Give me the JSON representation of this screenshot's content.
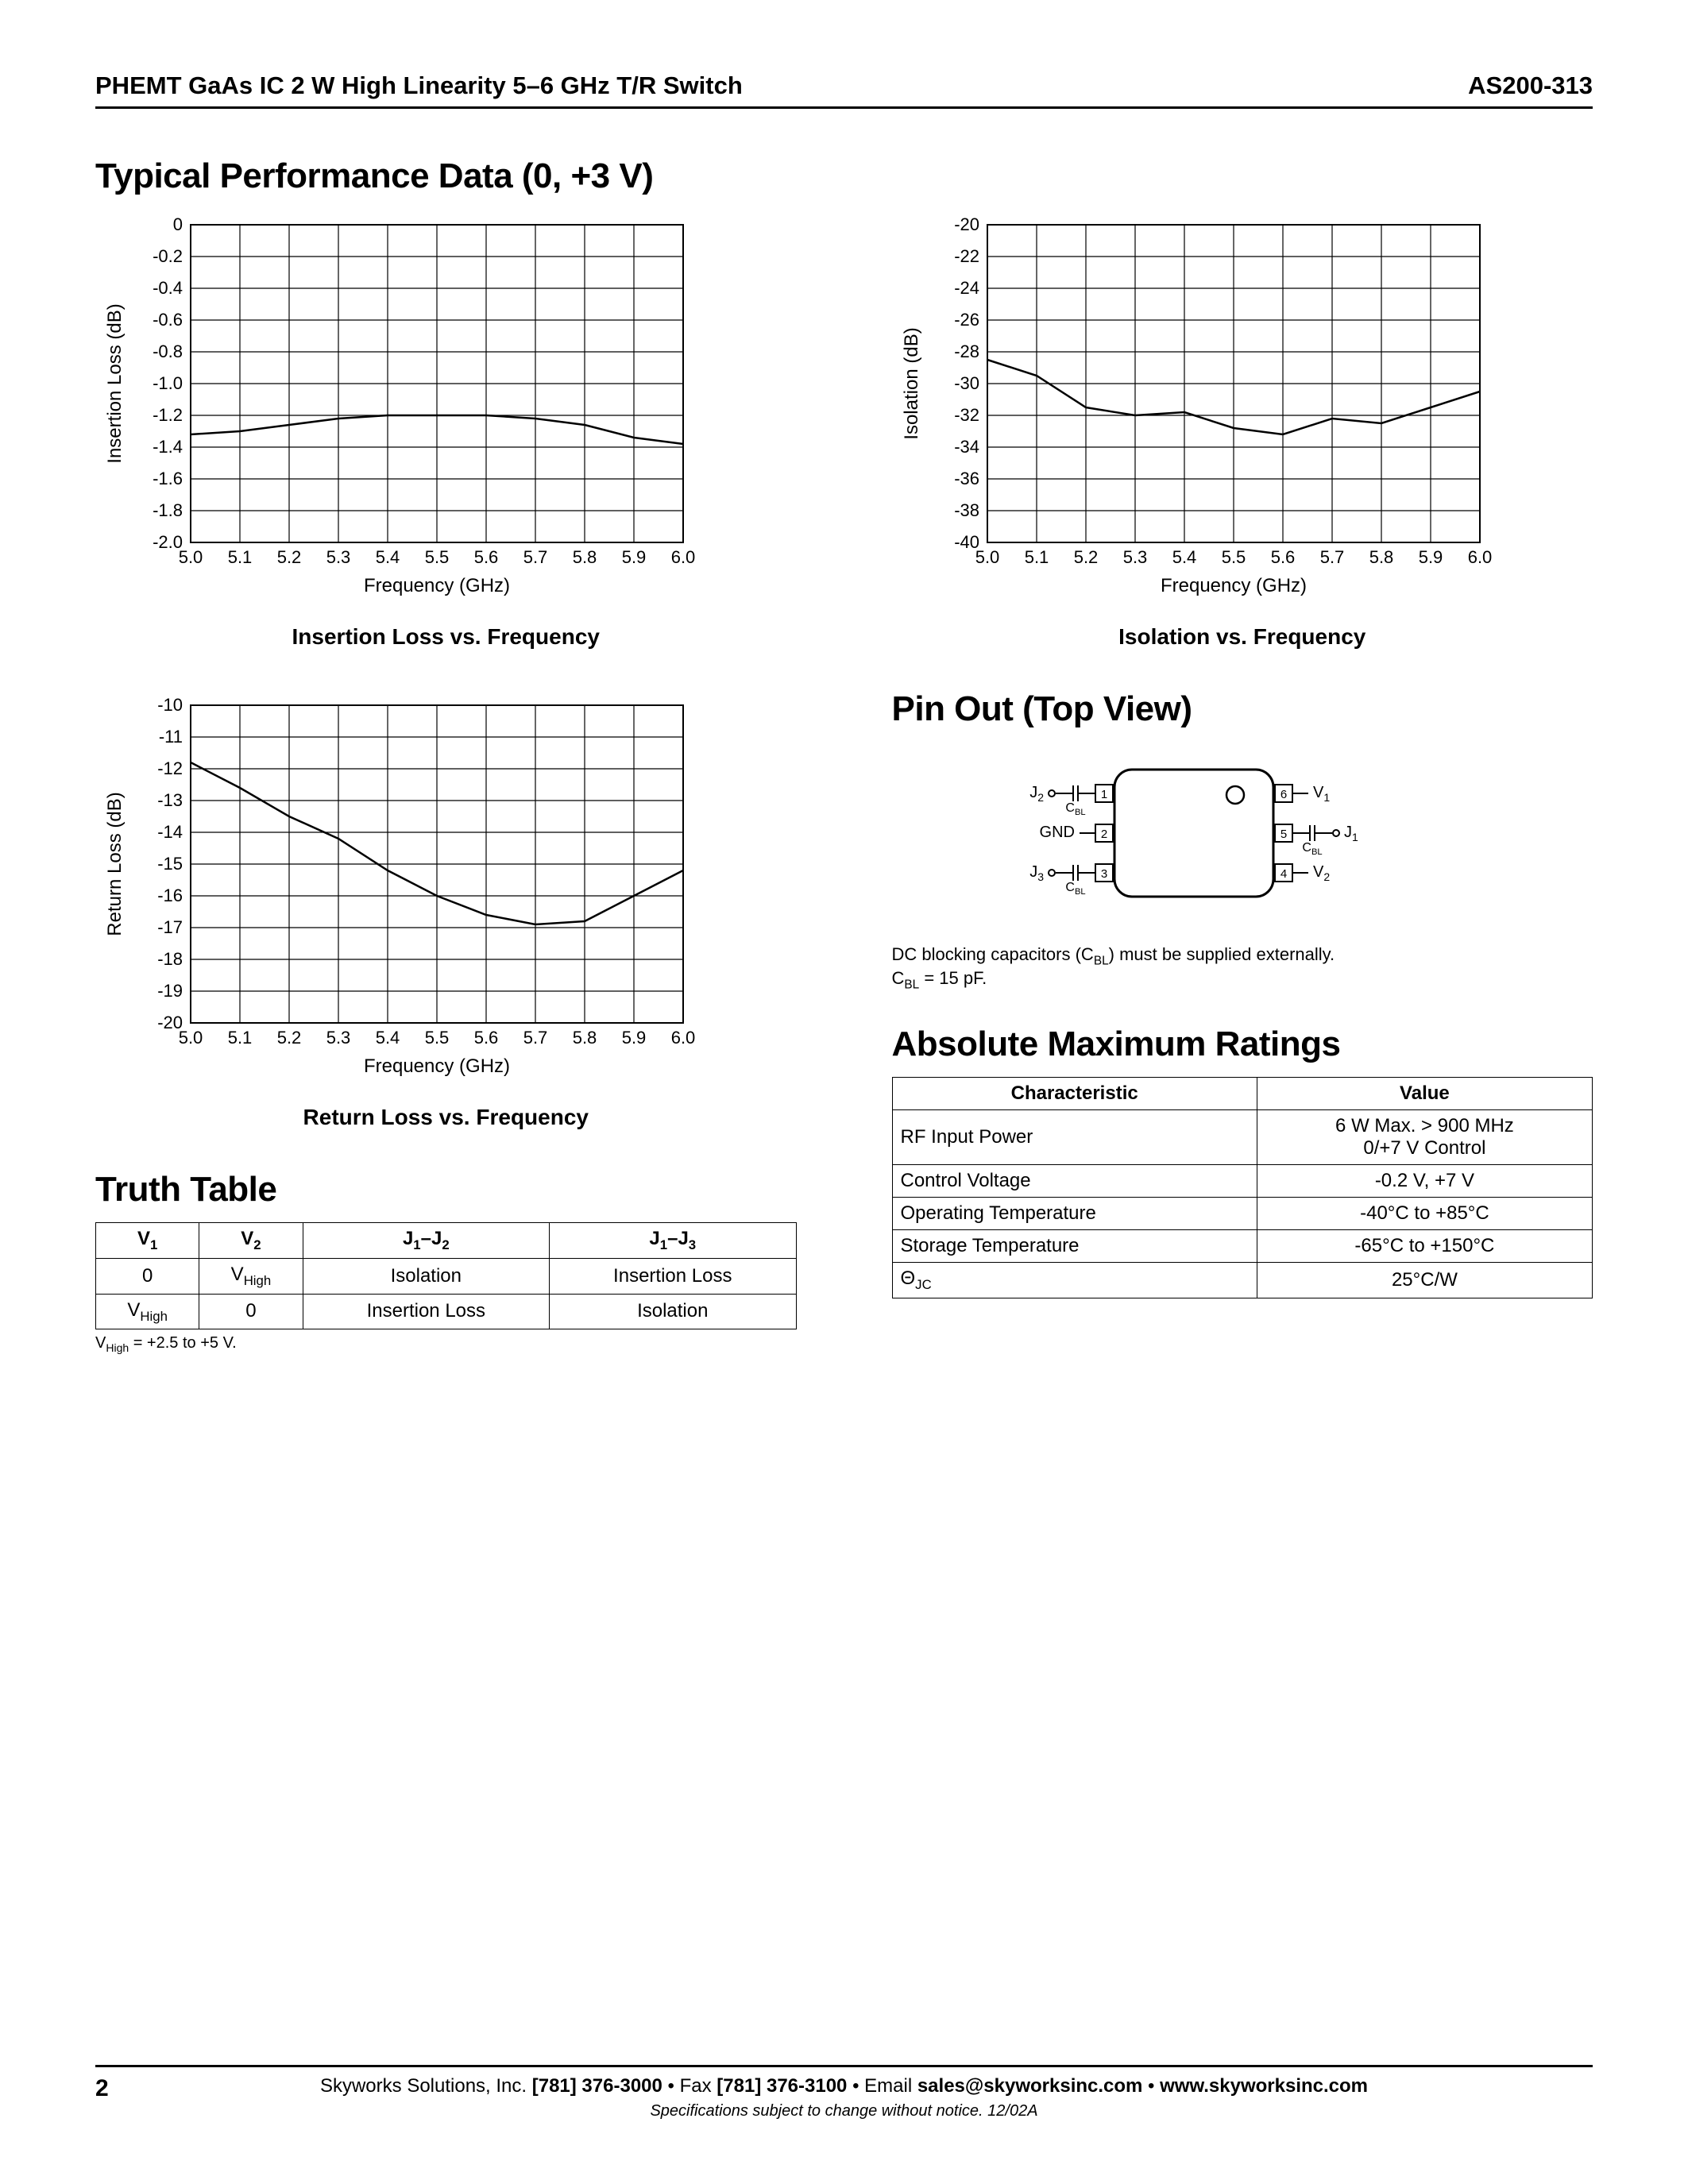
{
  "header": {
    "left": "PHEMT GaAs IC 2 W High Linearity 5–6 GHz T/R Switch",
    "right": "AS200-313"
  },
  "title_main": "Typical Performance Data (0, +3 V)",
  "chart1": {
    "type": "line",
    "caption": "Insertion Loss vs. Frequency",
    "xlabel": "Frequency (GHz)",
    "ylabel": "Insertion Loss (dB)",
    "xlim": [
      5.0,
      6.0
    ],
    "ylim": [
      -2.0,
      0
    ],
    "xtick_step": 0.1,
    "ytick_step": 0.2,
    "xticks": [
      "5.0",
      "5.1",
      "5.2",
      "5.3",
      "5.4",
      "5.5",
      "5.6",
      "5.7",
      "5.8",
      "5.9",
      "6.0"
    ],
    "yticks": [
      "0",
      "-0.2",
      "-0.4",
      "-0.6",
      "-0.8",
      "-1.0",
      "-1.2",
      "-1.4",
      "-1.6",
      "-1.8",
      "-2.0"
    ],
    "line_color": "#000000",
    "line_width": 2.5,
    "grid_color": "#000000",
    "bg": "#ffffff",
    "label_fontsize": 22,
    "x": [
      5.0,
      5.1,
      5.2,
      5.3,
      5.4,
      5.5,
      5.6,
      5.7,
      5.8,
      5.9,
      6.0
    ],
    "y": [
      -1.32,
      -1.3,
      -1.26,
      -1.22,
      -1.2,
      -1.2,
      -1.2,
      -1.22,
      -1.26,
      -1.34,
      -1.38
    ]
  },
  "chart2": {
    "type": "line",
    "caption": "Isolation vs. Frequency",
    "xlabel": "Frequency (GHz)",
    "ylabel": "Isolation (dB)",
    "xlim": [
      5.0,
      6.0
    ],
    "ylim": [
      -40,
      -20
    ],
    "xtick_step": 0.1,
    "ytick_step": 2,
    "xticks": [
      "5.0",
      "5.1",
      "5.2",
      "5.3",
      "5.4",
      "5.5",
      "5.6",
      "5.7",
      "5.8",
      "5.9",
      "6.0"
    ],
    "yticks": [
      "-20",
      "-22",
      "-24",
      "-26",
      "-28",
      "-30",
      "-32",
      "-34",
      "-36",
      "-38",
      "-40"
    ],
    "line_color": "#000000",
    "line_width": 2.5,
    "grid_color": "#000000",
    "bg": "#ffffff",
    "label_fontsize": 22,
    "x": [
      5.0,
      5.1,
      5.2,
      5.3,
      5.4,
      5.5,
      5.6,
      5.7,
      5.8,
      5.9,
      6.0
    ],
    "y": [
      -28.5,
      -29.5,
      -31.5,
      -32.0,
      -31.8,
      -32.8,
      -33.2,
      -32.2,
      -32.5,
      -31.5,
      -30.5
    ]
  },
  "chart3": {
    "type": "line",
    "caption": "Return Loss vs. Frequency",
    "xlabel": "Frequency (GHz)",
    "ylabel": "Return Loss (dB)",
    "xlim": [
      5.0,
      6.0
    ],
    "ylim": [
      -20,
      -10
    ],
    "xtick_step": 0.1,
    "ytick_step": 1,
    "xticks": [
      "5.0",
      "5.1",
      "5.2",
      "5.3",
      "5.4",
      "5.5",
      "5.6",
      "5.7",
      "5.8",
      "5.9",
      "6.0"
    ],
    "yticks": [
      "-10",
      "-11",
      "-12",
      "-13",
      "-14",
      "-15",
      "-16",
      "-17",
      "-18",
      "-19",
      "-20"
    ],
    "line_color": "#000000",
    "line_width": 2.5,
    "grid_color": "#000000",
    "bg": "#ffffff",
    "label_fontsize": 22,
    "x": [
      5.0,
      5.1,
      5.2,
      5.3,
      5.4,
      5.5,
      5.6,
      5.7,
      5.8,
      5.9,
      6.0
    ],
    "y": [
      -11.8,
      -12.6,
      -13.5,
      -14.2,
      -15.2,
      -16.0,
      -16.6,
      -16.9,
      -16.8,
      -16.0,
      -15.2
    ]
  },
  "truth_table": {
    "title": "Truth Table",
    "headers": [
      "V₁",
      "V₂",
      "J₁–J₂",
      "J₁–J₃"
    ],
    "headers_html": [
      "V<sub>1</sub>",
      "V<sub>2</sub>",
      "J<sub>1</sub>–J<sub>2</sub>",
      "J<sub>1</sub>–J<sub>3</sub>"
    ],
    "rows": [
      [
        "0",
        "V<sub>High</sub>",
        "Isolation",
        "Insertion Loss"
      ],
      [
        "V<sub>High</sub>",
        "0",
        "Insertion Loss",
        "Isolation"
      ]
    ],
    "note_html": "V<sub>High</sub> = +2.5 to +5 V."
  },
  "pinout": {
    "title": "Pin Out (Top View)",
    "pins_left": [
      {
        "num": "1",
        "label": "J<sub>2</sub>",
        "cap": "C<sub>BL</sub>"
      },
      {
        "num": "2",
        "label": "GND",
        "cap": ""
      },
      {
        "num": "3",
        "label": "J<sub>3</sub>",
        "cap": "C<sub>BL</sub>"
      }
    ],
    "pins_right": [
      {
        "num": "6",
        "label": "V<sub>1</sub>",
        "cap": ""
      },
      {
        "num": "5",
        "label": "J<sub>1</sub>",
        "cap": "C<sub>BL</sub>"
      },
      {
        "num": "4",
        "label": "V<sub>2</sub>",
        "cap": ""
      }
    ],
    "note_html": "DC blocking capacitors (C<sub>BL</sub>) must be supplied externally.<br>C<sub>BL</sub> = 15 pF."
  },
  "ratings": {
    "title": "Absolute Maximum Ratings",
    "headers": [
      "Characteristic",
      "Value"
    ],
    "rows": [
      [
        "RF Input Power",
        "6 W Max. > 900 MHz<br>0/+7 V Control"
      ],
      [
        "Control Voltage",
        "-0.2 V, +7 V"
      ],
      [
        "Operating Temperature",
        "-40°C to +85°C"
      ],
      [
        "Storage Temperature",
        "-65°C to +150°C"
      ],
      [
        "Θ<sub>JC</sub>",
        "25°C/W"
      ]
    ]
  },
  "footer": {
    "page": "2",
    "line1_html": "Skyworks Solutions, Inc. <b>[781] 376-3000</b> • Fax <b>[781] 376-3100</b> • Email <b>sales@skyworksinc.com</b> • <b>www.skyworksinc.com</b>",
    "line2": "Specifications subject to change without notice.  12/02A"
  }
}
